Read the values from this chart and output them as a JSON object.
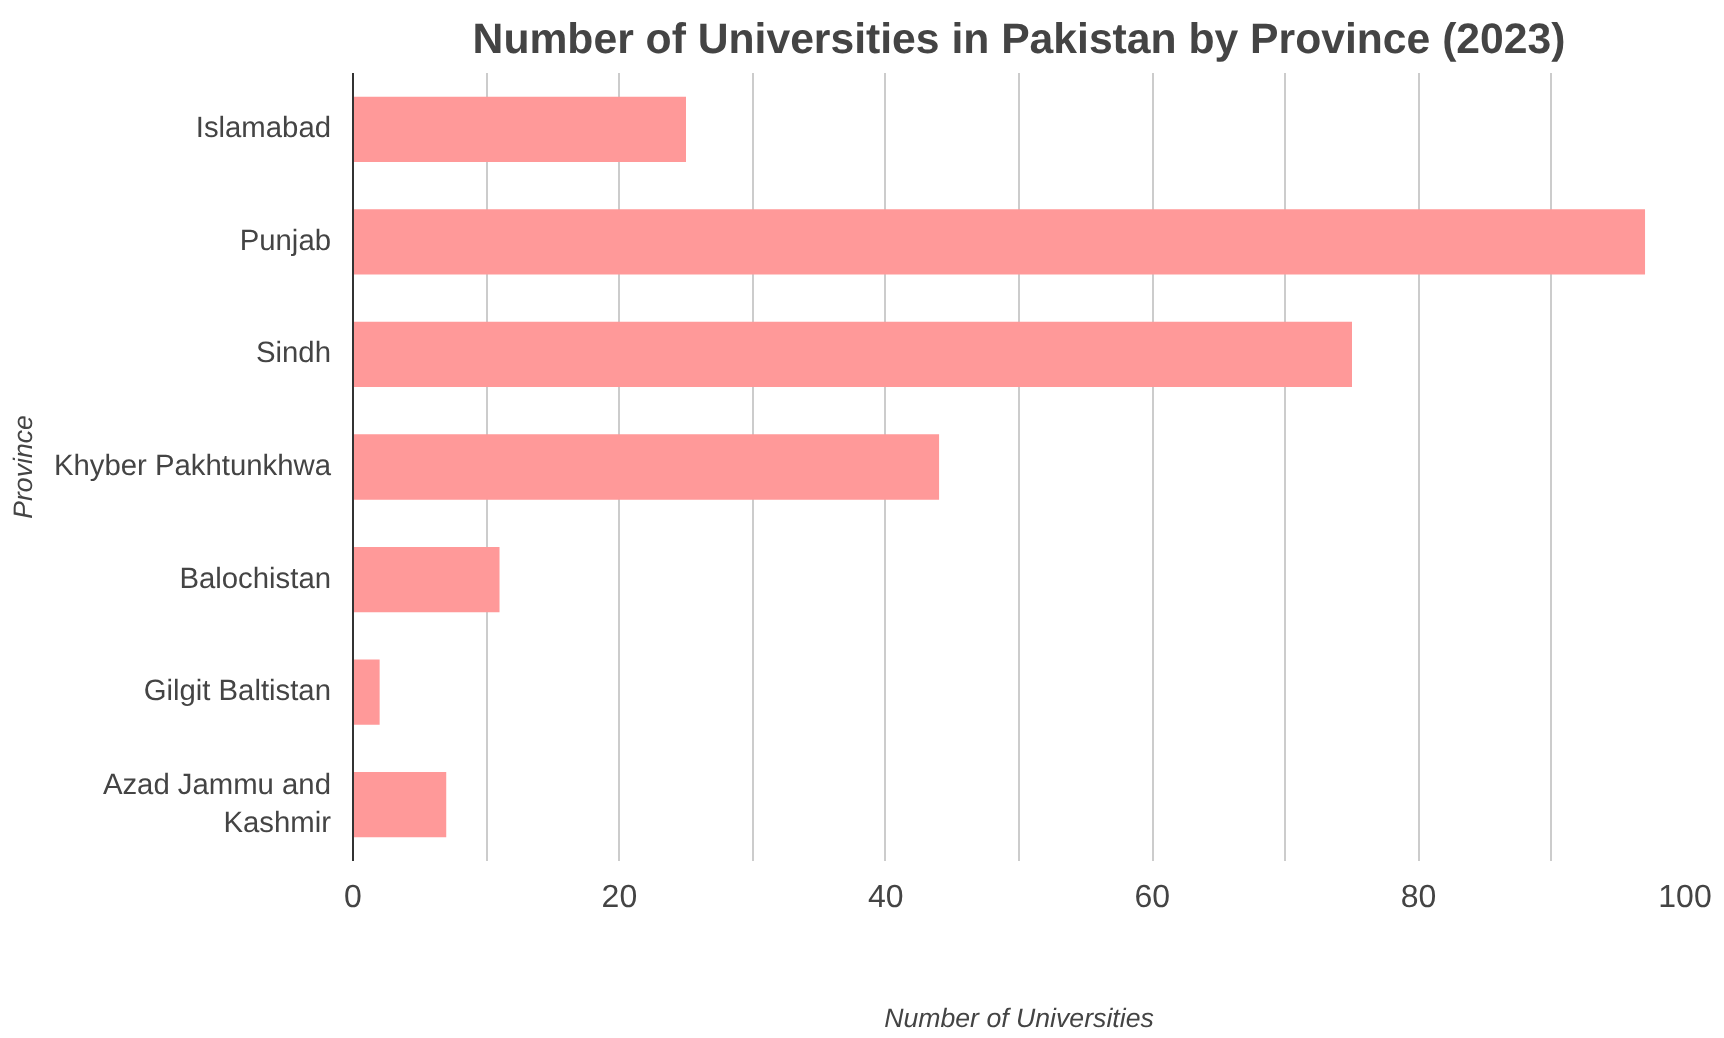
{
  "chart_data": {
    "type": "bar",
    "orientation": "horizontal",
    "title": "Number of Universities in Pakistan by Province (2023)",
    "xlabel": "Number of Universities",
    "ylabel": "Province",
    "categories": [
      "Islamabad",
      "Punjab",
      "Sindh",
      "Khyber Pakhtunkhwa",
      "Balochistan",
      "Gilgit Baltistan",
      "Azad Jammu and Kashmir"
    ],
    "values": [
      25,
      97,
      75,
      44,
      11,
      2,
      7
    ],
    "color": "#ff9999",
    "xlim": [
      0,
      100
    ],
    "xticks": [
      0,
      {
        "value": 10,
        "label": null
      },
      20,
      {
        "value": 30,
        "label": null
      },
      40,
      {
        "value": 50,
        "label": null
      },
      60,
      {
        "value": 70,
        "label": null
      },
      80,
      {
        "value": 90,
        "label": null
      },
      100
    ],
    "grid": "x"
  }
}
